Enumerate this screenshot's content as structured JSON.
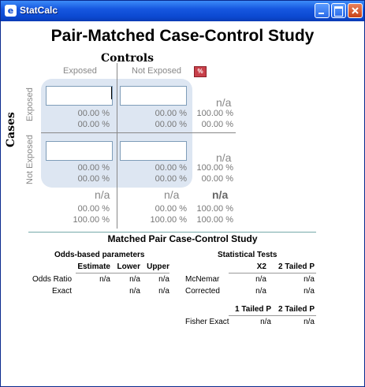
{
  "window": {
    "title": "StatCalc",
    "icon": "app-icon"
  },
  "page": {
    "title": "Pair-Matched Case-Control Study",
    "controls_label": "Controls",
    "cases_label": "Cases",
    "col_exposed": "Exposed",
    "col_not_exposed": "Not Exposed",
    "row_exposed": "Exposed",
    "row_not_exposed": "Not Exposed",
    "percent_badge": "%"
  },
  "table": {
    "cell_ee": {
      "value": "",
      "row_pct": "00.00 %",
      "col_pct": "00.00 %"
    },
    "cell_en": {
      "value": "",
      "row_pct": "00.00 %",
      "col_pct": "00.00 %"
    },
    "cell_ne": {
      "value": "",
      "row_pct": "00.00 %",
      "col_pct": "00.00 %"
    },
    "cell_nn": {
      "value": "",
      "row_pct": "00.00 %",
      "col_pct": "00.00 %"
    },
    "row1_total": {
      "value": "n/a",
      "pct1": "100.00 %",
      "pct2": "00.00 %"
    },
    "row2_total": {
      "value": "n/a",
      "pct1": "100.00 %",
      "pct2": "00.00 %"
    },
    "col1_total": {
      "value": "n/a",
      "pct1": "00.00 %",
      "pct2": "100.00 %"
    },
    "col2_total": {
      "value": "n/a",
      "pct1": "00.00 %",
      "pct2": "100.00 %"
    },
    "grand_total": {
      "value": "n/a",
      "pct1": "100.00 %",
      "pct2": "100.00 %"
    }
  },
  "results": {
    "title": "Matched Pair Case-Control Study",
    "odds_title": "Odds-based parameters",
    "odds_headers": [
      "Estimate",
      "Lower",
      "Upper"
    ],
    "odds_rows": [
      {
        "label": "Odds Ratio",
        "values": [
          "n/a",
          "n/a",
          "n/a"
        ]
      },
      {
        "label": "Exact",
        "values": [
          "",
          "n/a",
          "n/a"
        ]
      }
    ],
    "tests_title": "Statistical Tests",
    "tests_headers": [
      "X2",
      "2 Tailed P"
    ],
    "tests_rows": [
      {
        "label": "McNemar",
        "values": [
          "n/a",
          "n/a"
        ]
      },
      {
        "label": "Corrected",
        "values": [
          "n/a",
          "n/a"
        ]
      }
    ],
    "fisher_headers": [
      "1 Tailed P",
      "2 Tailed P"
    ],
    "fisher_rows": [
      {
        "label": "Fisher Exact",
        "values": [
          "n/a",
          "n/a"
        ]
      }
    ]
  }
}
